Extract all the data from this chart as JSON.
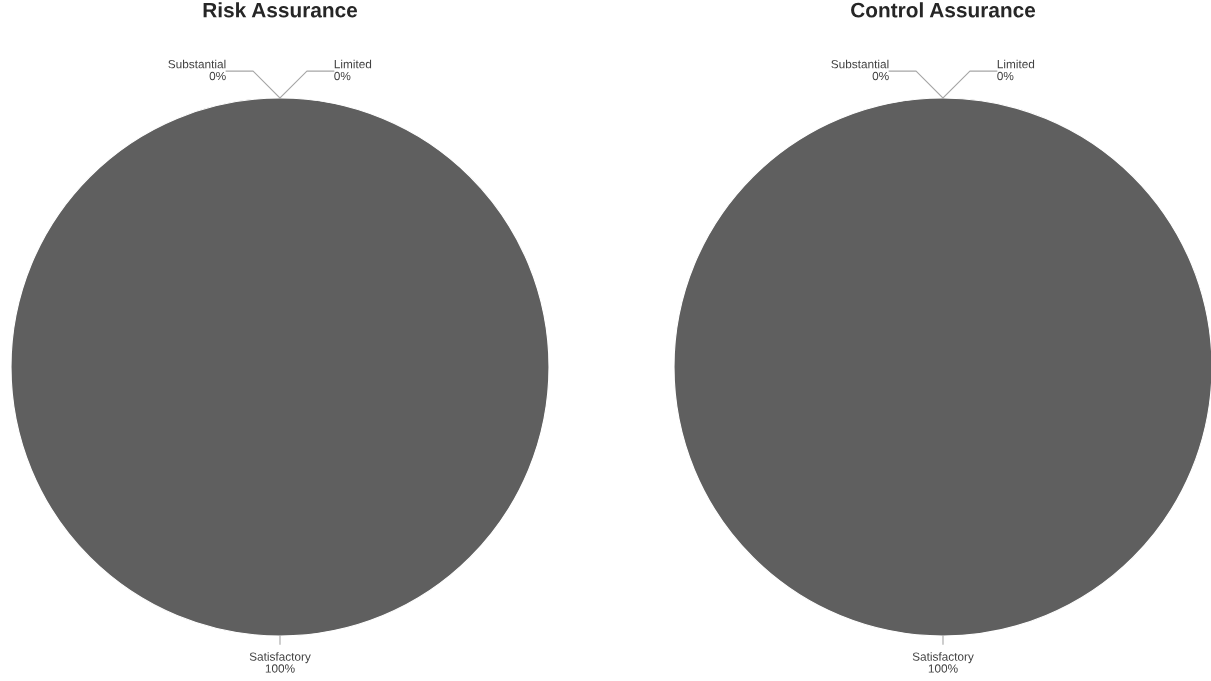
{
  "chart_data": [
    {
      "type": "pie",
      "title": "Risk Assurance",
      "categories": [
        "Substantial",
        "Limited",
        "Satisfactory"
      ],
      "values": [
        0,
        0,
        100
      ],
      "colors": [
        "#5f5f5f",
        "#5f5f5f",
        "#5f5f5f"
      ],
      "value_labels": [
        "0%",
        "0%",
        "100%"
      ],
      "legend": false
    },
    {
      "type": "pie",
      "title": "Control Assurance",
      "categories": [
        "Substantial",
        "Limited",
        "Satisfactory"
      ],
      "values": [
        0,
        0,
        100
      ],
      "colors": [
        "#5f5f5f",
        "#5f5f5f",
        "#5f5f5f"
      ],
      "value_labels": [
        "0%",
        "0%",
        "100%"
      ],
      "legend": false
    }
  ]
}
